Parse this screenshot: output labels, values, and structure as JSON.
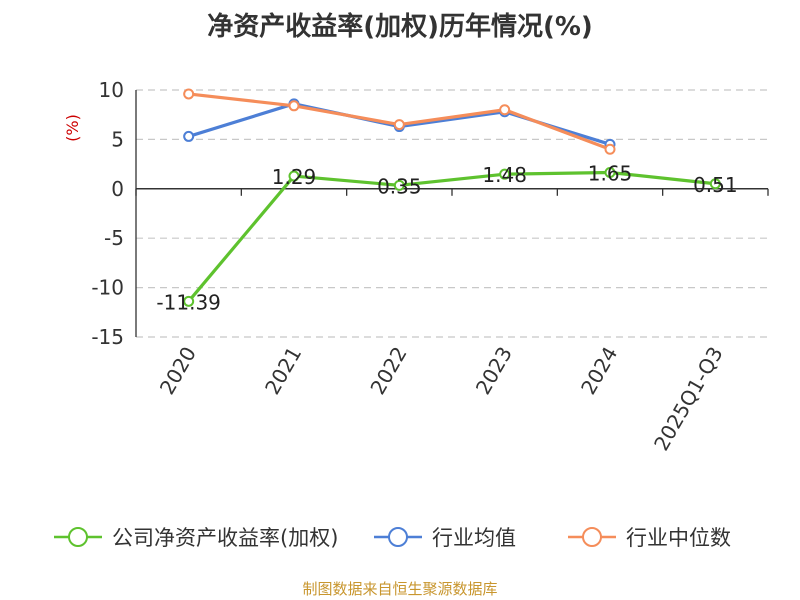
{
  "chart_data": {
    "type": "line",
    "title": "净资产收益率(加权)历年情况(%)",
    "ylabel": "(%)",
    "xlabel": "",
    "ylim": [
      -15,
      10
    ],
    "yticks": [
      10,
      5,
      0,
      -5,
      -10,
      -15
    ],
    "grid": true,
    "legend_position": "bottom",
    "categories": [
      "2020",
      "2021",
      "2022",
      "2023",
      "2024",
      "2025Q1-Q3"
    ],
    "series": [
      {
        "name": "公司净资产收益率(加权)",
        "color": "#5ec22e",
        "values": [
          -11.39,
          1.29,
          0.35,
          1.48,
          1.65,
          0.51
        ],
        "labels": [
          "-11.39",
          "1.29",
          "0.35",
          "1.48",
          "1.65",
          "0.51"
        ]
      },
      {
        "name": "行业均值",
        "color": "#4d7fd6",
        "values": [
          5.3,
          8.6,
          6.3,
          7.8,
          4.5,
          null
        ]
      },
      {
        "name": "行业中位数",
        "color": "#f58d5a",
        "values": [
          9.6,
          8.4,
          6.5,
          8.0,
          4.0,
          null
        ]
      }
    ]
  },
  "source": "制图数据来自恒生聚源数据库"
}
